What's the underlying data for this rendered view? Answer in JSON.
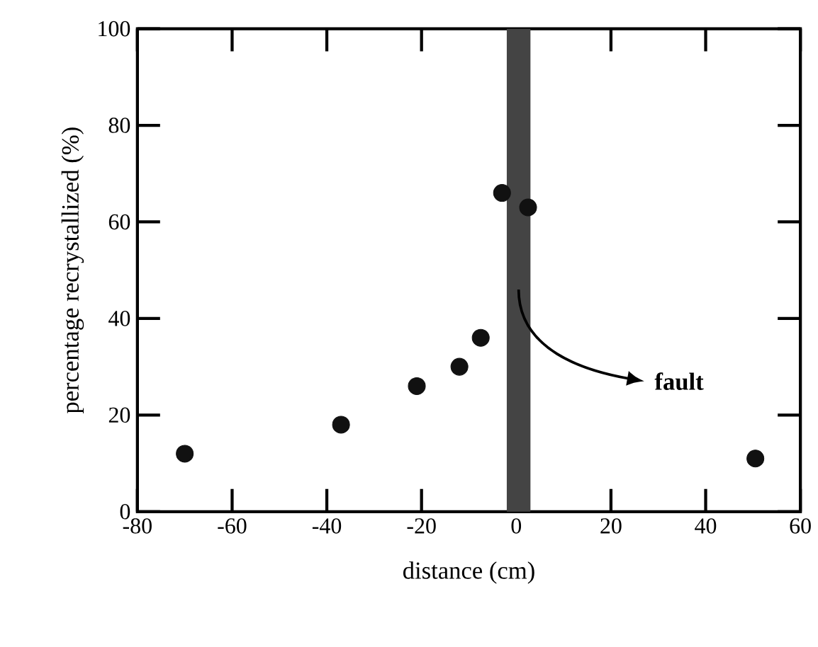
{
  "chart_data": {
    "type": "scatter",
    "xlabel": "distance (cm)",
    "ylabel": "percentage recrystallized (%)",
    "x": [
      -70,
      -37,
      -21,
      -12,
      -7.5,
      -3,
      2.5,
      50.5
    ],
    "values": [
      12,
      18,
      26,
      30,
      36,
      66,
      63,
      11
    ],
    "color": "#111111",
    "marker": "circle",
    "xlim": [
      -80,
      60
    ],
    "xticks": [
      -80,
      -60,
      -40,
      -20,
      0,
      20,
      40,
      60
    ],
    "ylim": [
      0,
      100
    ],
    "yticks": [
      0,
      20,
      40,
      60,
      80,
      100
    ],
    "bands": [
      {
        "axis": "x",
        "from": -2,
        "to": 3,
        "color": "#444444"
      }
    ],
    "annotations": [
      "fault"
    ]
  }
}
